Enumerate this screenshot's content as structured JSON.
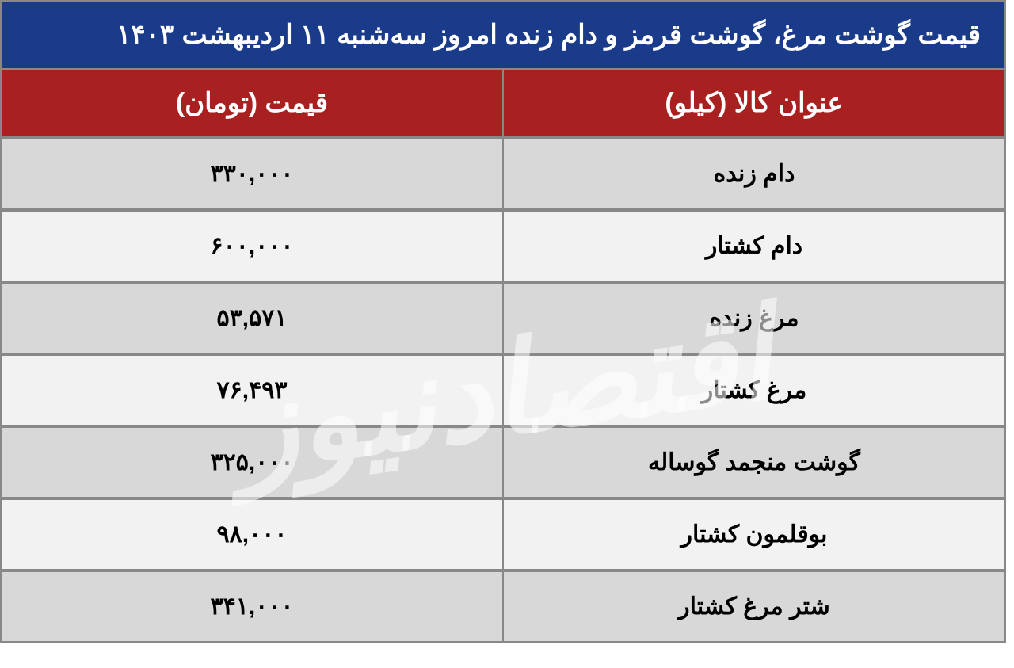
{
  "title": "قیمت گوشت مرغ، گوشت قرمز و دام زنده امروز سه‌شنبه ۱۱ اردیبهشت ۱۴۰۳",
  "headers": {
    "item": "عنوان کالا (کیلو)",
    "price": "قیمت (تومان)"
  },
  "rows": [
    {
      "item": "دام زنده",
      "price": "۳۳۰,۰۰۰"
    },
    {
      "item": "دام کشتار",
      "price": "۶۰۰,۰۰۰"
    },
    {
      "item": "مرغ زنده",
      "price": "۵۳,۵۷۱"
    },
    {
      "item": "مرغ کشتار",
      "price": "۷۶,۴۹۳"
    },
    {
      "item": "گوشت منجمد گوساله",
      "price": "۳۲۵,۰۰۰"
    },
    {
      "item": "بوقلمون کشتار",
      "price": "۹۸,۰۰۰"
    },
    {
      "item": "شتر مرغ کشتار",
      "price": "۳۴۱,۰۰۰"
    }
  ],
  "watermark": "اقتصادنیوز",
  "styles": {
    "title_bg": "#1a3a8a",
    "title_color": "#ffffff",
    "header_bg": "#a82020",
    "header_color": "#ffffff",
    "row_even_bg": "#d8d8d8",
    "row_odd_bg": "#f2f2f2",
    "border_color": "#888888",
    "text_color": "#000000",
    "title_fontsize": 34,
    "header_fontsize": 34,
    "cell_fontsize": 30,
    "watermark_color": "rgba(255,255,255,0.55)"
  }
}
